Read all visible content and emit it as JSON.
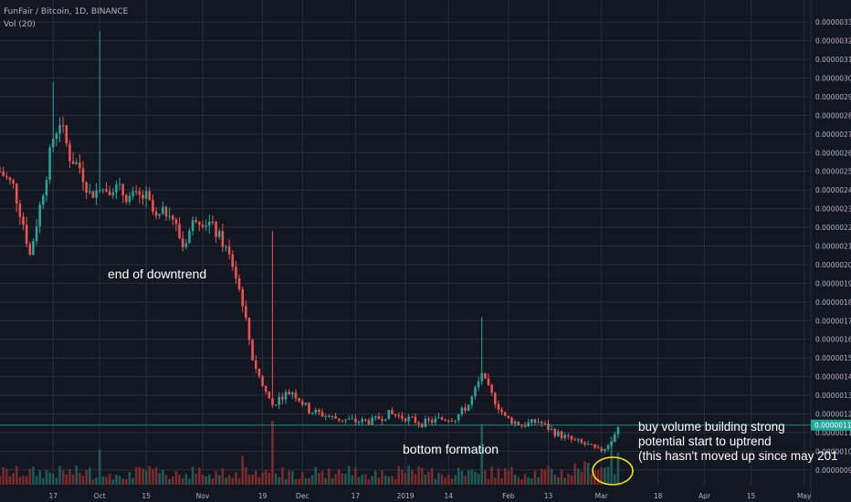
{
  "header": {
    "title": "FunFair / Bitcoin, 1D, BINANCE",
    "indicator": "Vol (20)"
  },
  "price_axis": {
    "ticks": [
      "0.00000330",
      "0.00000320",
      "0.00000310",
      "0.00000300",
      "0.00000290",
      "0.00000280",
      "0.00000270",
      "0.00000260",
      "0.00000250",
      "0.00000240",
      "0.00000230",
      "0.00000220",
      "0.00000210",
      "0.00000200",
      "0.00000190",
      "0.00000180",
      "0.00000170",
      "0.00000160",
      "0.00000150",
      "0.00000140",
      "0.00000130",
      "0.00000120",
      "0.00000110",
      "0.00000100",
      "0.00000090"
    ],
    "last_price": "0.00000114"
  },
  "time_axis": {
    "ticks": [
      "17",
      "Oct",
      "15",
      "Nov",
      "19",
      "Dec",
      "17",
      "2019",
      "14",
      "Feb",
      "13",
      "Mar",
      "18",
      "Apr",
      "15",
      "May"
    ]
  },
  "annotations": {
    "end_of_downtrend": "end of downtrend",
    "bottom_formation": "bottom formation",
    "buy_volume": [
      "buy volume building strong",
      "potential start to uptrend",
      "(this hasn't moved up since may 201"
    ]
  },
  "colors": {
    "background": "#131722",
    "grid": "#2a2e39",
    "up": "#26a69a",
    "down": "#ef5350",
    "vol_up": "#1e5b57",
    "vol_down": "#7a2b2c",
    "axis_text": "#b2b5be",
    "price_line": "#26a69a",
    "highlight_circle": "#f5e51b",
    "annotation_text": "#ffffff"
  },
  "chart_data": {
    "type": "candlestick",
    "symbol": "FunFair / Bitcoin",
    "interval": "1D",
    "exchange": "BINANCE",
    "ylim": [
      8.5e-07,
      3.35e-06
    ],
    "x_range": [
      "2018-09-01",
      "2019-05-03"
    ],
    "price_path": [
      [
        "2018-09-01",
        2.5e-06
      ],
      [
        "2018-09-05",
        2.42e-06
      ],
      [
        "2018-09-08",
        2.22e-06
      ],
      [
        "2018-09-10",
        2.05e-06
      ],
      [
        "2018-09-14",
        2.4e-06
      ],
      [
        "2018-09-17",
        2.68e-06
      ],
      [
        "2018-09-19",
        2.77e-06
      ],
      [
        "2018-09-22",
        2.58e-06
      ],
      [
        "2018-09-25",
        2.52e-06
      ],
      [
        "2018-09-28",
        2.38e-06
      ],
      [
        "2018-10-01",
        2.4e-06
      ],
      [
        "2018-10-05",
        2.42e-06
      ],
      [
        "2018-10-10",
        2.36e-06
      ],
      [
        "2018-10-15",
        2.36e-06
      ],
      [
        "2018-10-18",
        2.24e-06
      ],
      [
        "2018-10-22",
        2.3e-06
      ],
      [
        "2018-10-26",
        2.1e-06
      ],
      [
        "2018-10-30",
        2.26e-06
      ],
      [
        "2018-11-03",
        2.22e-06
      ],
      [
        "2018-11-07",
        2.12e-06
      ],
      [
        "2018-11-10",
        2e-06
      ],
      [
        "2018-11-13",
        1.8e-06
      ],
      [
        "2018-11-16",
        1.5e-06
      ],
      [
        "2018-11-19",
        1.35e-06
      ],
      [
        "2018-11-22",
        1.25e-06
      ],
      [
        "2018-11-25",
        1.3e-06
      ],
      [
        "2018-11-28",
        1.32e-06
      ],
      [
        "2018-12-03",
        1.22e-06
      ],
      [
        "2018-12-10",
        1.18e-06
      ],
      [
        "2018-12-17",
        1.16e-06
      ],
      [
        "2018-12-22",
        1.16e-06
      ],
      [
        "2018-12-27",
        1.2e-06
      ],
      [
        "2019-01-01",
        1.18e-06
      ],
      [
        "2019-01-06",
        1.15e-06
      ],
      [
        "2019-01-11",
        1.17e-06
      ],
      [
        "2019-01-16",
        1.18e-06
      ],
      [
        "2019-01-20",
        1.25e-06
      ],
      [
        "2019-01-24",
        1.4e-06
      ],
      [
        "2019-01-27",
        1.3e-06
      ],
      [
        "2019-01-31",
        1.18e-06
      ],
      [
        "2019-02-05",
        1.14e-06
      ],
      [
        "2019-02-10",
        1.16e-06
      ],
      [
        "2019-02-15",
        1.1e-06
      ],
      [
        "2019-02-20",
        1.06e-06
      ],
      [
        "2019-02-25",
        1.03e-06
      ],
      [
        "2019-02-28",
        1e-06
      ],
      [
        "2019-03-02",
        1.02e-06
      ],
      [
        "2019-03-04",
        1.06e-06
      ],
      [
        "2019-03-06",
        1.14e-06
      ]
    ],
    "spikes": [
      {
        "date": "2018-09-17",
        "high": 2.98e-06
      },
      {
        "date": "2018-10-01",
        "high": 3.25e-06
      },
      {
        "date": "2018-11-22",
        "high": 2.18e-06
      },
      {
        "date": "2019-01-24",
        "high": 1.72e-06
      }
    ],
    "volume_spikes": [
      {
        "date": "2018-11-22",
        "level": 1.0
      },
      {
        "date": "2019-01-24",
        "level": 0.95
      },
      {
        "date": "2018-10-01",
        "level": 0.55
      },
      {
        "date": "2018-11-13",
        "level": 0.45
      },
      {
        "date": "2019-03-04",
        "level": 0.75
      },
      {
        "date": "2019-03-06",
        "level": 0.5
      }
    ]
  }
}
